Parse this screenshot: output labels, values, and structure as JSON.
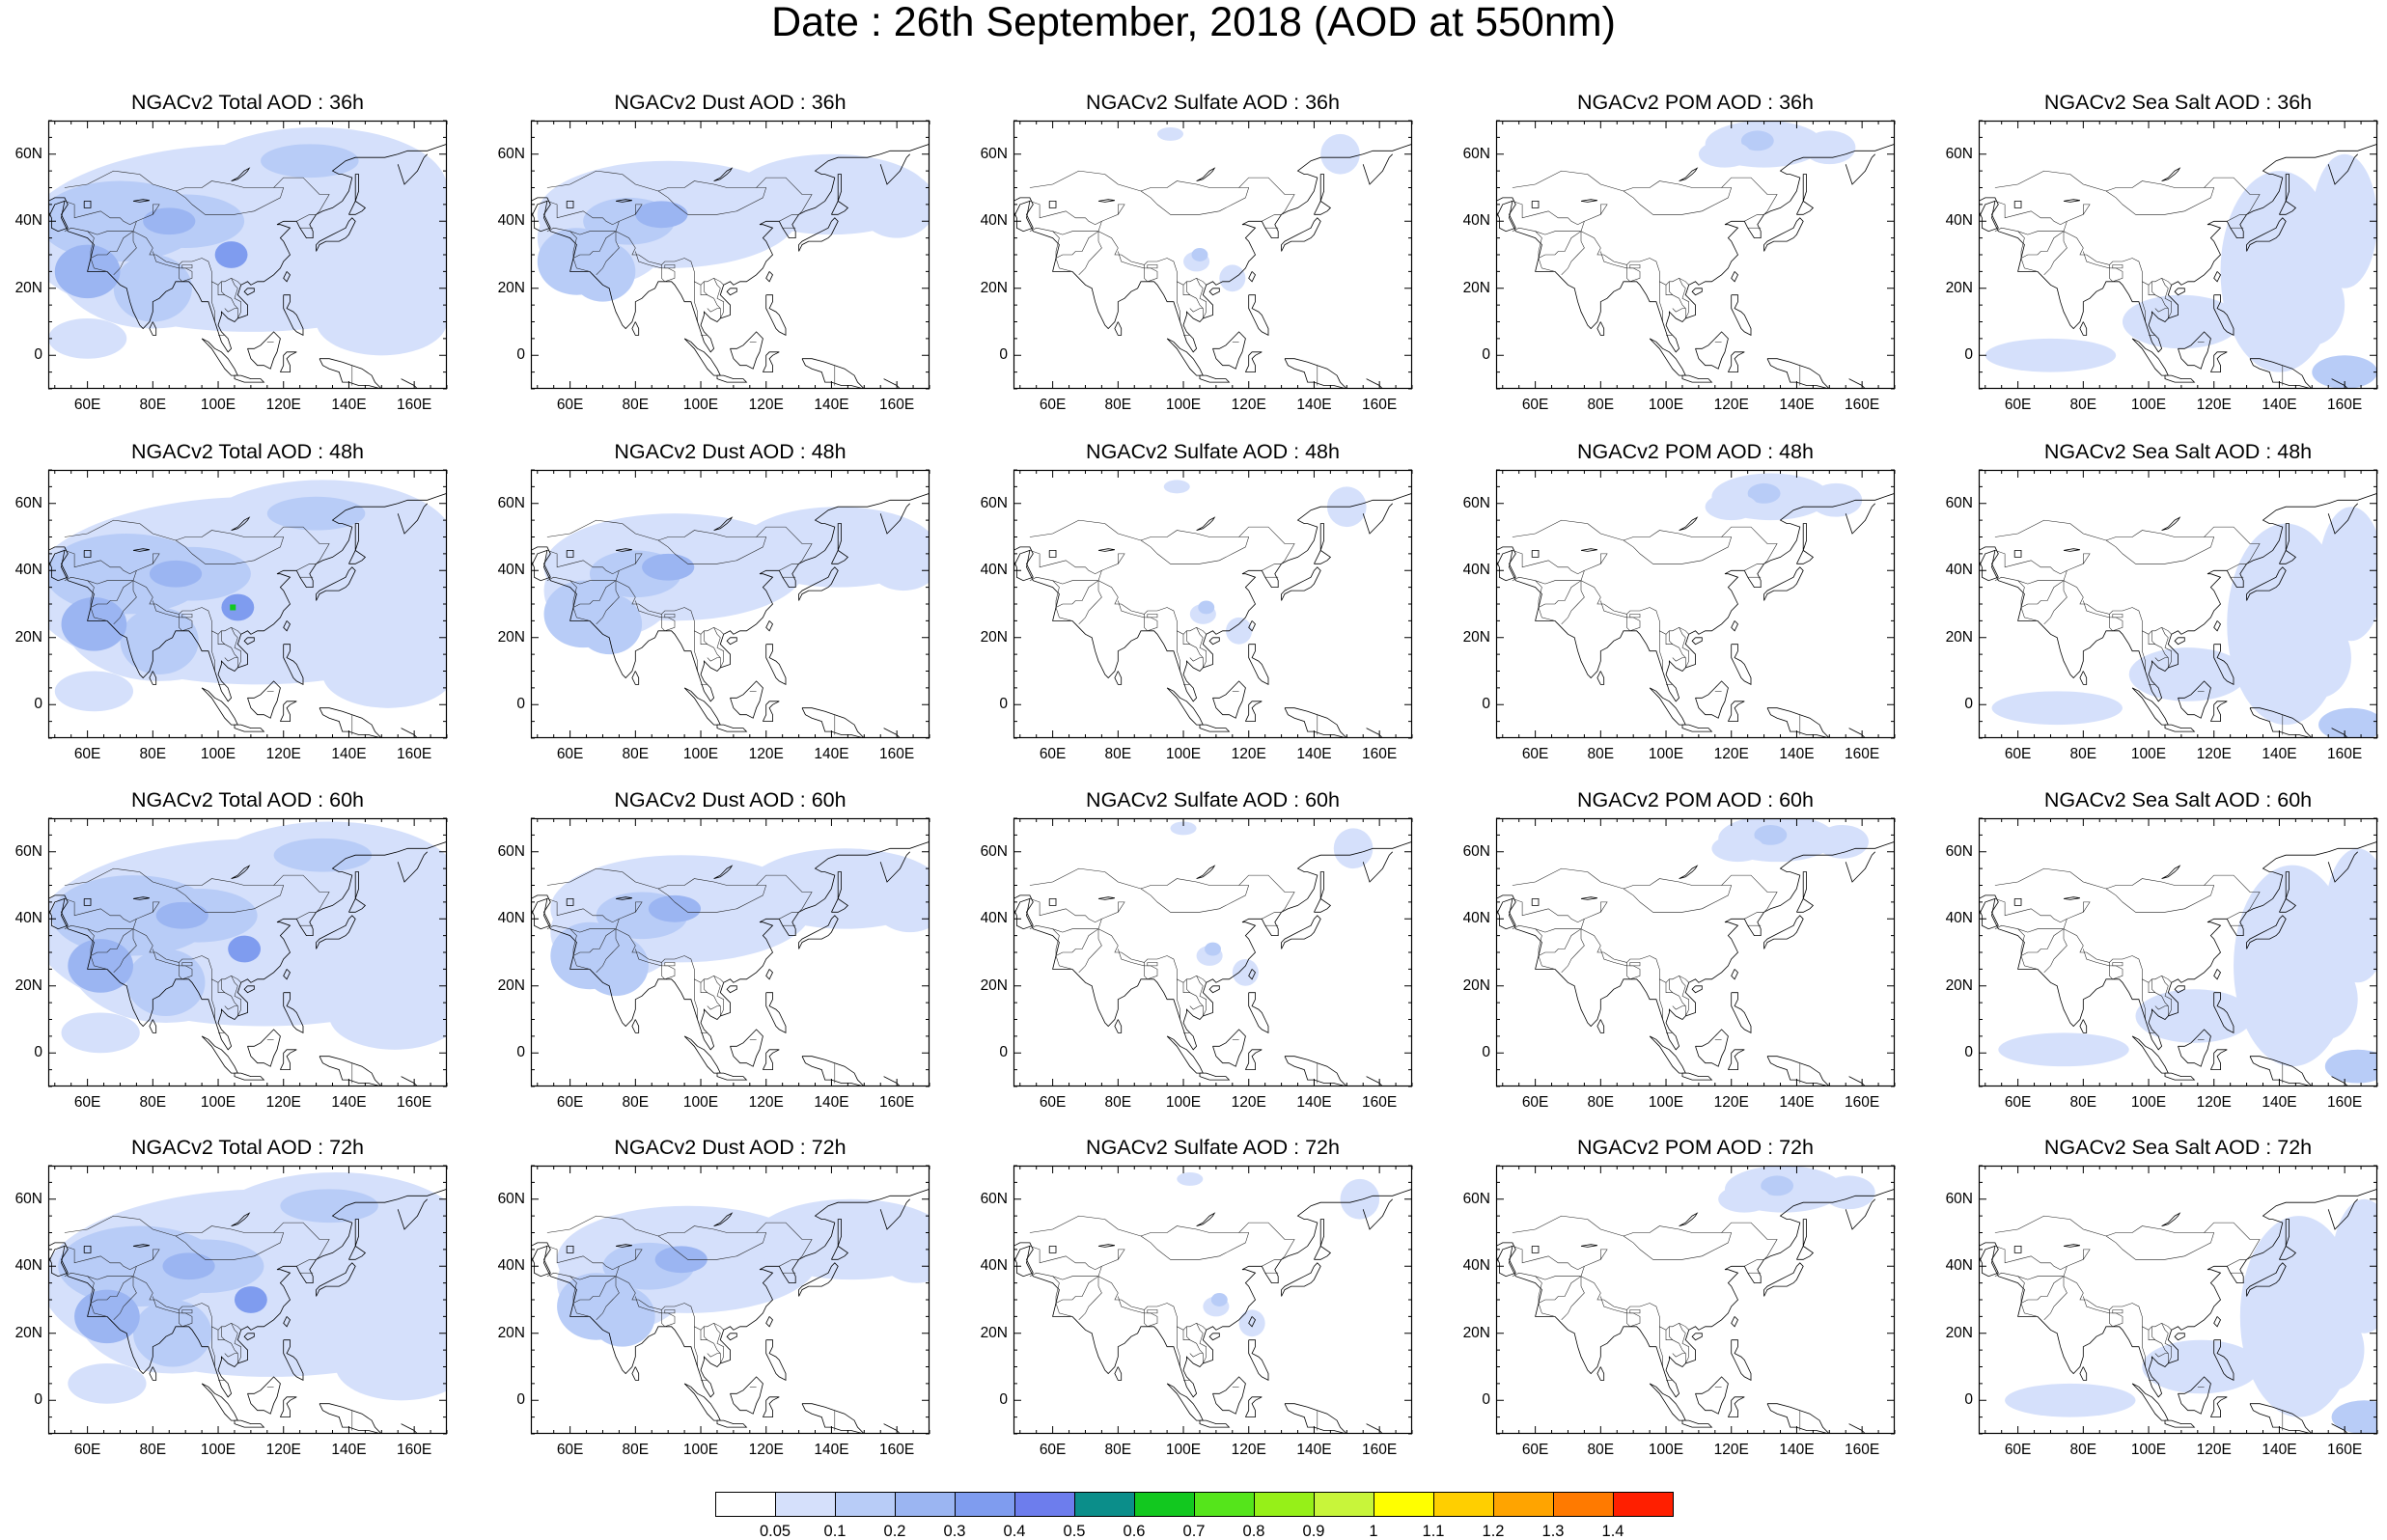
{
  "title": "Date : 26th September, 2018 (AOD at 550nm)",
  "panels": [
    [
      "NGACv2 Total AOD : 36h",
      "NGACv2 Dust AOD : 36h",
      "NGACv2 Sulfate AOD : 36h",
      "NGACv2 POM AOD : 36h",
      "NGACv2 Sea Salt AOD : 36h"
    ],
    [
      "NGACv2 Total AOD : 48h",
      "NGACv2 Dust AOD : 48h",
      "NGACv2 Sulfate AOD : 48h",
      "NGACv2 POM AOD : 48h",
      "NGACv2 Sea Salt AOD : 48h"
    ],
    [
      "NGACv2 Total AOD : 60h",
      "NGACv2 Dust AOD : 60h",
      "NGACv2 Sulfate AOD : 60h",
      "NGACv2 POM AOD : 60h",
      "NGACv2 Sea Salt AOD : 60h"
    ],
    [
      "NGACv2 Total AOD : 72h",
      "NGACv2 Dust AOD : 72h",
      "NGACv2 Sulfate AOD : 72h",
      "NGACv2 POM AOD : 72h",
      "NGACv2 Sea Salt  AOD : 72h"
    ]
  ],
  "map": {
    "lon_range": [
      48,
      170
    ],
    "lat_range": [
      -10,
      70
    ],
    "lat_ticks": [
      {
        "value": 60,
        "label": "60N"
      },
      {
        "value": 40,
        "label": "40N"
      },
      {
        "value": 20,
        "label": "20N"
      },
      {
        "value": 0,
        "label": "0"
      }
    ],
    "lon_ticks": [
      {
        "value": 60,
        "label": "60E"
      },
      {
        "value": 80,
        "label": "80E"
      },
      {
        "value": 100,
        "label": "100E"
      },
      {
        "value": 120,
        "label": "120E"
      },
      {
        "value": 140,
        "label": "140E"
      },
      {
        "value": 160,
        "label": "160E"
      }
    ]
  },
  "colorbar": {
    "colors": [
      "#ffffff",
      "#d5e0fb",
      "#b8ccf7",
      "#9bb5f2",
      "#7f9cef",
      "#6d7ded",
      "#175ff0",
      "#0b8e8a",
      "#12c81f",
      "#55e51b",
      "#96f018",
      "#c8f53a",
      "#ffff00",
      "#ffcf00",
      "#ffa400",
      "#ff7a00",
      "#ff1f00"
    ],
    "labels": [
      "0.05",
      "0.1",
      "0.2",
      "0.3",
      "0.4",
      "0.5",
      "0.6",
      "0.7",
      "0.8",
      "0.9",
      "1",
      "1.1",
      "1.2",
      "1.3",
      "1.4"
    ]
  },
  "coastline_color": "#000000"
}
